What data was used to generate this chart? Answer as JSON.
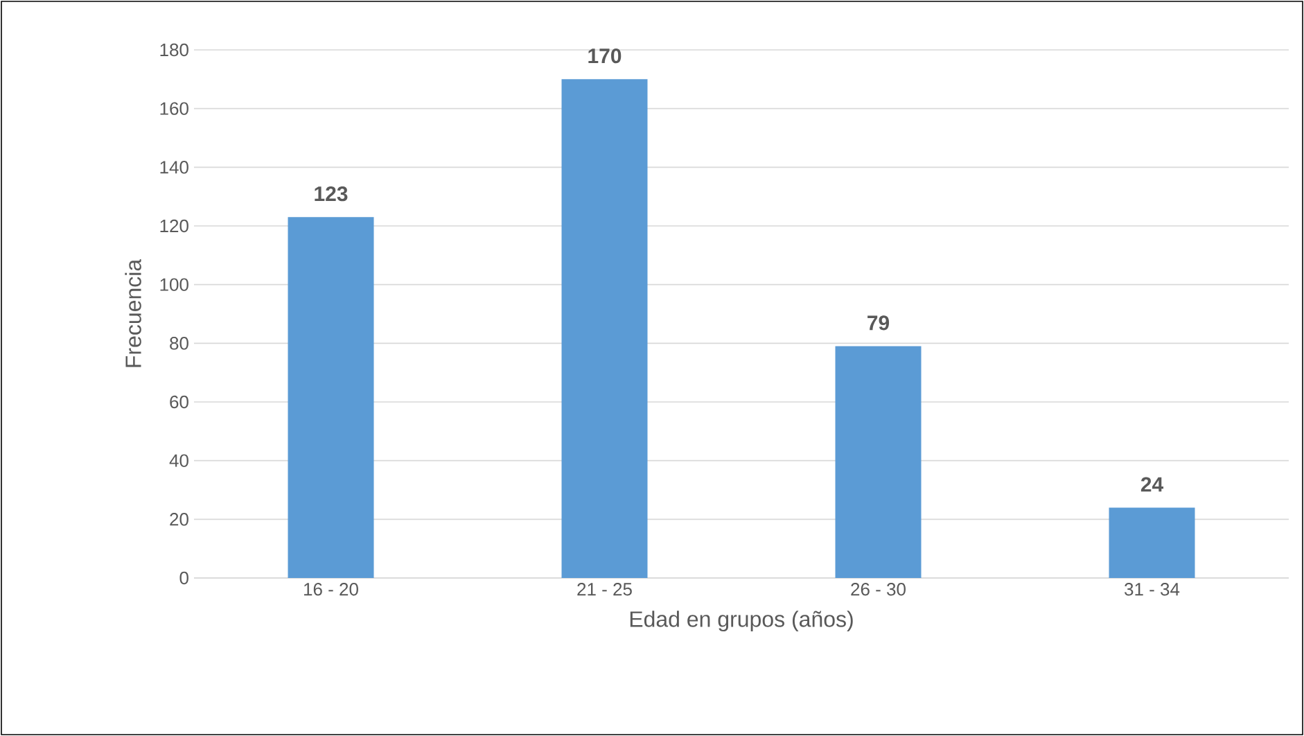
{
  "chart_data": {
    "type": "bar",
    "xlabel": "Edad en grupos (años)",
    "ylabel": "Frecuencia",
    "categories": [
      "16 - 20",
      "21 - 25",
      "26 - 30",
      "31 - 34"
    ],
    "values": [
      123,
      170,
      79,
      24
    ],
    "color": "#5b9bd5",
    "ylim": [
      0,
      180
    ],
    "yticks": [
      0,
      20,
      40,
      60,
      80,
      100,
      120,
      140,
      160,
      180
    ],
    "grid": "y",
    "data_labels": true
  }
}
